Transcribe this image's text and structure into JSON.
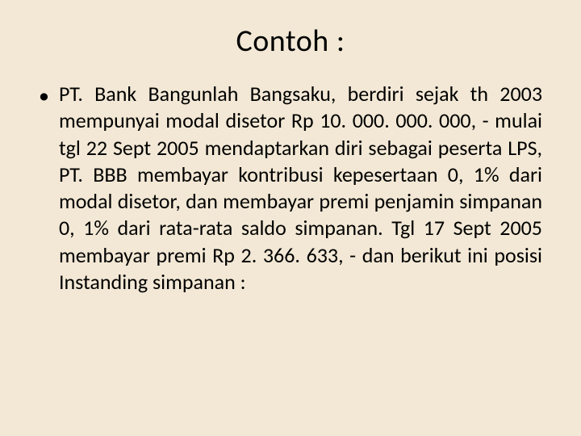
{
  "slide": {
    "title": "Contoh :",
    "bullet_char": "•",
    "body": "PT. Bank Bangunlah Bangsaku, berdiri sejak th 2003 mempunyai modal disetor Rp 10. 000. 000. 000, - mulai tgl 22 Sept 2005 mendaptarkan diri sebagai peserta LPS, PT. BBB membayar kontribusi kepesertaan 0, 1% dari modal disetor, dan membayar premi penjamin simpanan 0, 1% dari rata-rata saldo simpanan. Tgl 17 Sept 2005 membayar premi Rp 2. 366. 633, - dan berikut ini posisi Instanding simpanan :"
  },
  "style": {
    "background_color": "#f2e8d5",
    "text_color": "#000000",
    "title_fontsize": 38,
    "body_fontsize": 26,
    "font_family": "Calibri"
  }
}
